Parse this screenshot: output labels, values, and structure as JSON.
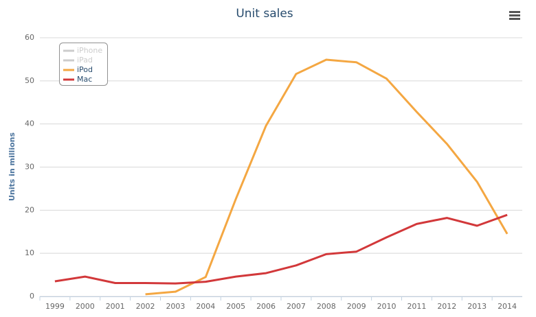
{
  "chart_data": {
    "type": "line",
    "title": "Unit sales",
    "y_label": "Units in millions",
    "categories": [
      "1999",
      "2000",
      "2001",
      "2002",
      "2003",
      "2004",
      "2005",
      "2006",
      "2007",
      "2008",
      "2009",
      "2010",
      "2011",
      "2012",
      "2013",
      "2014"
    ],
    "series": [
      {
        "name": "iPhone",
        "color": "#7cb5ec",
        "visible": false,
        "values": [
          null,
          null,
          null,
          null,
          null,
          null,
          null,
          null,
          null,
          null,
          null,
          null,
          null,
          null,
          null,
          null
        ]
      },
      {
        "name": "iPad",
        "color": "#434348",
        "visible": false,
        "values": [
          null,
          null,
          null,
          null,
          null,
          null,
          null,
          null,
          null,
          null,
          null,
          null,
          null,
          null,
          null,
          null
        ]
      },
      {
        "name": "iPod",
        "color": "#f4a742",
        "visible": true,
        "values": [
          null,
          null,
          null,
          0.5,
          1.1,
          4.5,
          22.6,
          39.6,
          51.6,
          54.9,
          54.3,
          50.5,
          42.8,
          35.4,
          26.6,
          14.5
        ]
      },
      {
        "name": "Mac",
        "color": "#d2383a",
        "visible": true,
        "values": [
          3.5,
          4.6,
          3.1,
          3.1,
          3.0,
          3.4,
          4.6,
          5.4,
          7.2,
          9.8,
          10.4,
          13.7,
          16.8,
          18.2,
          16.4,
          18.9
        ]
      }
    ],
    "ylim": [
      0,
      60
    ],
    "yticks": [
      0,
      10,
      20,
      30,
      40,
      50,
      60
    ],
    "grid": true,
    "legend": "top-left"
  }
}
